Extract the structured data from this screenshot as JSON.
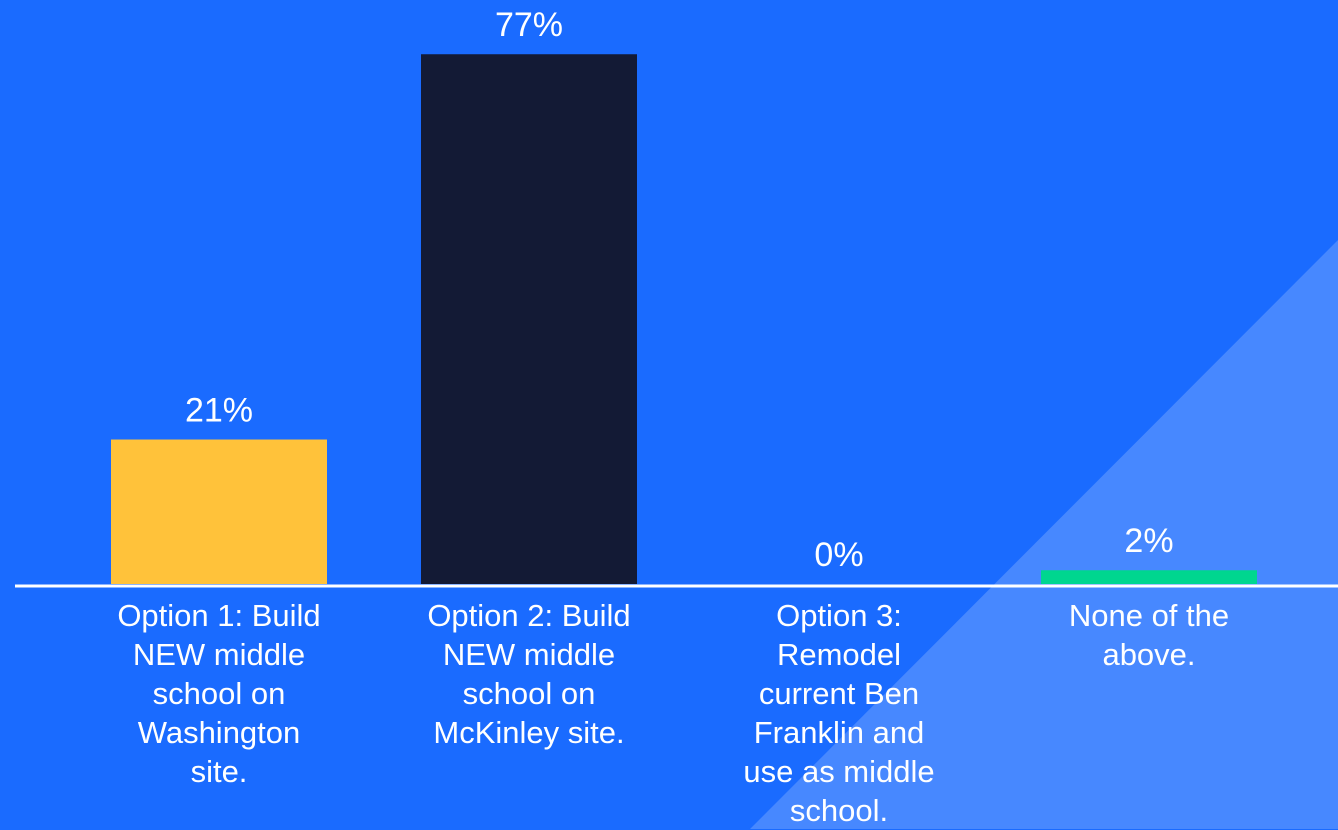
{
  "chart_data": {
    "type": "bar",
    "categories": [
      "Option 1: Build NEW middle school on Washington site.",
      "Option 2: Build NEW middle school on McKinley site.",
      "Option 3: Remodel current Ben Franklin and use as middle school.",
      "None of the above."
    ],
    "values": [
      21,
      77,
      0,
      2
    ],
    "value_labels": [
      "21%",
      "77%",
      "0%",
      "2%"
    ],
    "colors": [
      "#ffc23a",
      "#131a35",
      null,
      "#00d68f"
    ]
  }
}
